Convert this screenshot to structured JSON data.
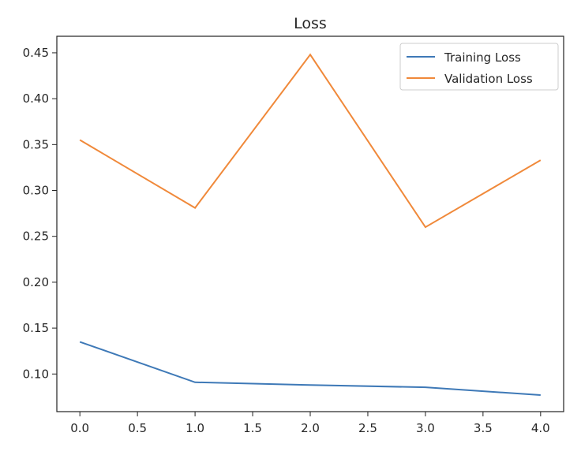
{
  "chart_data": {
    "type": "line",
    "title": "Loss",
    "xlabel": "",
    "ylabel": "",
    "x": [
      0,
      1,
      2,
      3,
      4
    ],
    "series": [
      {
        "name": "Training Loss",
        "color": "#3e79b7",
        "values": [
          0.135,
          0.091,
          0.088,
          0.0855,
          0.077
        ]
      },
      {
        "name": "Validation Loss",
        "color": "#f0893a",
        "values": [
          0.355,
          0.281,
          0.448,
          0.26,
          0.333
        ]
      }
    ],
    "xlim": [
      -0.2,
      4.2
    ],
    "ylim": [
      0.059,
      0.468
    ],
    "xticks": [
      "0.0",
      "0.5",
      "1.0",
      "1.5",
      "2.0",
      "2.5",
      "3.0",
      "3.5",
      "4.0"
    ],
    "yticks": [
      "0.10",
      "0.15",
      "0.20",
      "0.25",
      "0.30",
      "0.35",
      "0.40",
      "0.45"
    ],
    "grid": false,
    "legend": "top-right"
  }
}
